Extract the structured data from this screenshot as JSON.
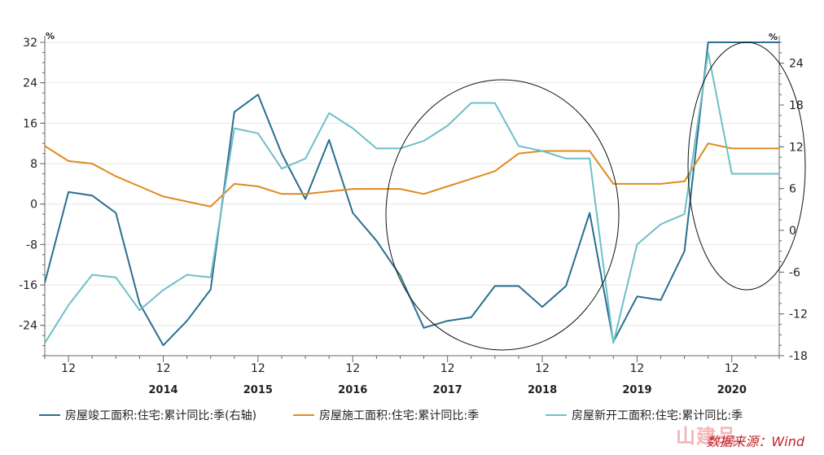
{
  "colors": {
    "completion": "#2a6f8f",
    "construction": "#e08a1e",
    "new_start": "#6fbfc8",
    "grid": "#e6e6e6",
    "axis": "#666666"
  },
  "units": {
    "left": "%",
    "right": "%"
  },
  "legend": [
    {
      "label": "房屋竣工面积:住宅:累计同比:季(右轴)",
      "color_key": "completion"
    },
    {
      "label": "房屋施工面积:住宅:累计同比:季",
      "color_key": "construction"
    },
    {
      "label": "房屋新开工面积:住宅:累计同比:季",
      "color_key": "new_start"
    }
  ],
  "source": "数据来源：Wind",
  "watermark": "山建品",
  "chart_data": {
    "type": "line",
    "x": [
      "2013Q3",
      "2013Q4",
      "2014Q1",
      "2014Q2",
      "2014Q3",
      "2014Q4",
      "2015Q1",
      "2015Q2",
      "2015Q3",
      "2015Q4",
      "2016Q1",
      "2016Q2",
      "2016Q3",
      "2016Q4",
      "2017Q1",
      "2017Q2",
      "2017Q3",
      "2017Q4",
      "2018Q1",
      "2018Q2",
      "2018Q3",
      "2018Q4",
      "2019Q1",
      "2019Q2",
      "2019Q3",
      "2019Q4",
      "2020Q1",
      "2020Q2",
      "2020Q3",
      "2020Q4",
      "2021Q1",
      "2021Q2"
    ],
    "year_labels": [
      "2014",
      "2015",
      "2016",
      "2017",
      "2018",
      "2019",
      "2020"
    ],
    "month_tick_label": "12",
    "left_axis": {
      "ticks": [
        32,
        24,
        16,
        8,
        0,
        -8,
        -16,
        -24
      ],
      "ylim": [
        -30,
        32
      ]
    },
    "right_axis": {
      "ticks": [
        24,
        18,
        12,
        6,
        0,
        -6,
        -12,
        -18
      ],
      "ylim": [
        -18,
        27
      ]
    },
    "series": [
      {
        "name": "房屋竣工面积:住宅:累计同比:季(右轴)",
        "axis": "right",
        "values": [
          -7.5,
          5.5,
          5,
          2.5,
          -10.5,
          -16.5,
          -13,
          -8.5,
          17,
          19.5,
          11,
          4.5,
          13,
          2.5,
          -1.5,
          -6.5,
          -14,
          -13,
          -12.5,
          -8,
          -8,
          -11,
          -8,
          2.5,
          -16,
          -9.5,
          -10,
          -3,
          27,
          27,
          27,
          27
        ]
      },
      {
        "name": "房屋施工面积:住宅:累计同比:季",
        "axis": "left",
        "values": [
          11.5,
          8.5,
          8,
          5.5,
          3.5,
          1.5,
          0.5,
          -0.5,
          4,
          3.5,
          2,
          2,
          2.5,
          3,
          3,
          3,
          2,
          3.5,
          5,
          6.5,
          10,
          10.5,
          10.5,
          10.5,
          4,
          4,
          4,
          4.5,
          12,
          11,
          11,
          11
        ]
      },
      {
        "name": "房屋新开工面积:住宅:累计同比:季",
        "axis": "left",
        "values": [
          -27.5,
          -20,
          -14,
          -14.5,
          -21,
          -17,
          -14,
          -14.5,
          15,
          14,
          7,
          9,
          18,
          15,
          11,
          11,
          12.5,
          15.5,
          20,
          20,
          11.5,
          10.5,
          9,
          9,
          -27.5,
          -8,
          -4,
          -2,
          30,
          6,
          6,
          6
        ]
      }
    ]
  }
}
